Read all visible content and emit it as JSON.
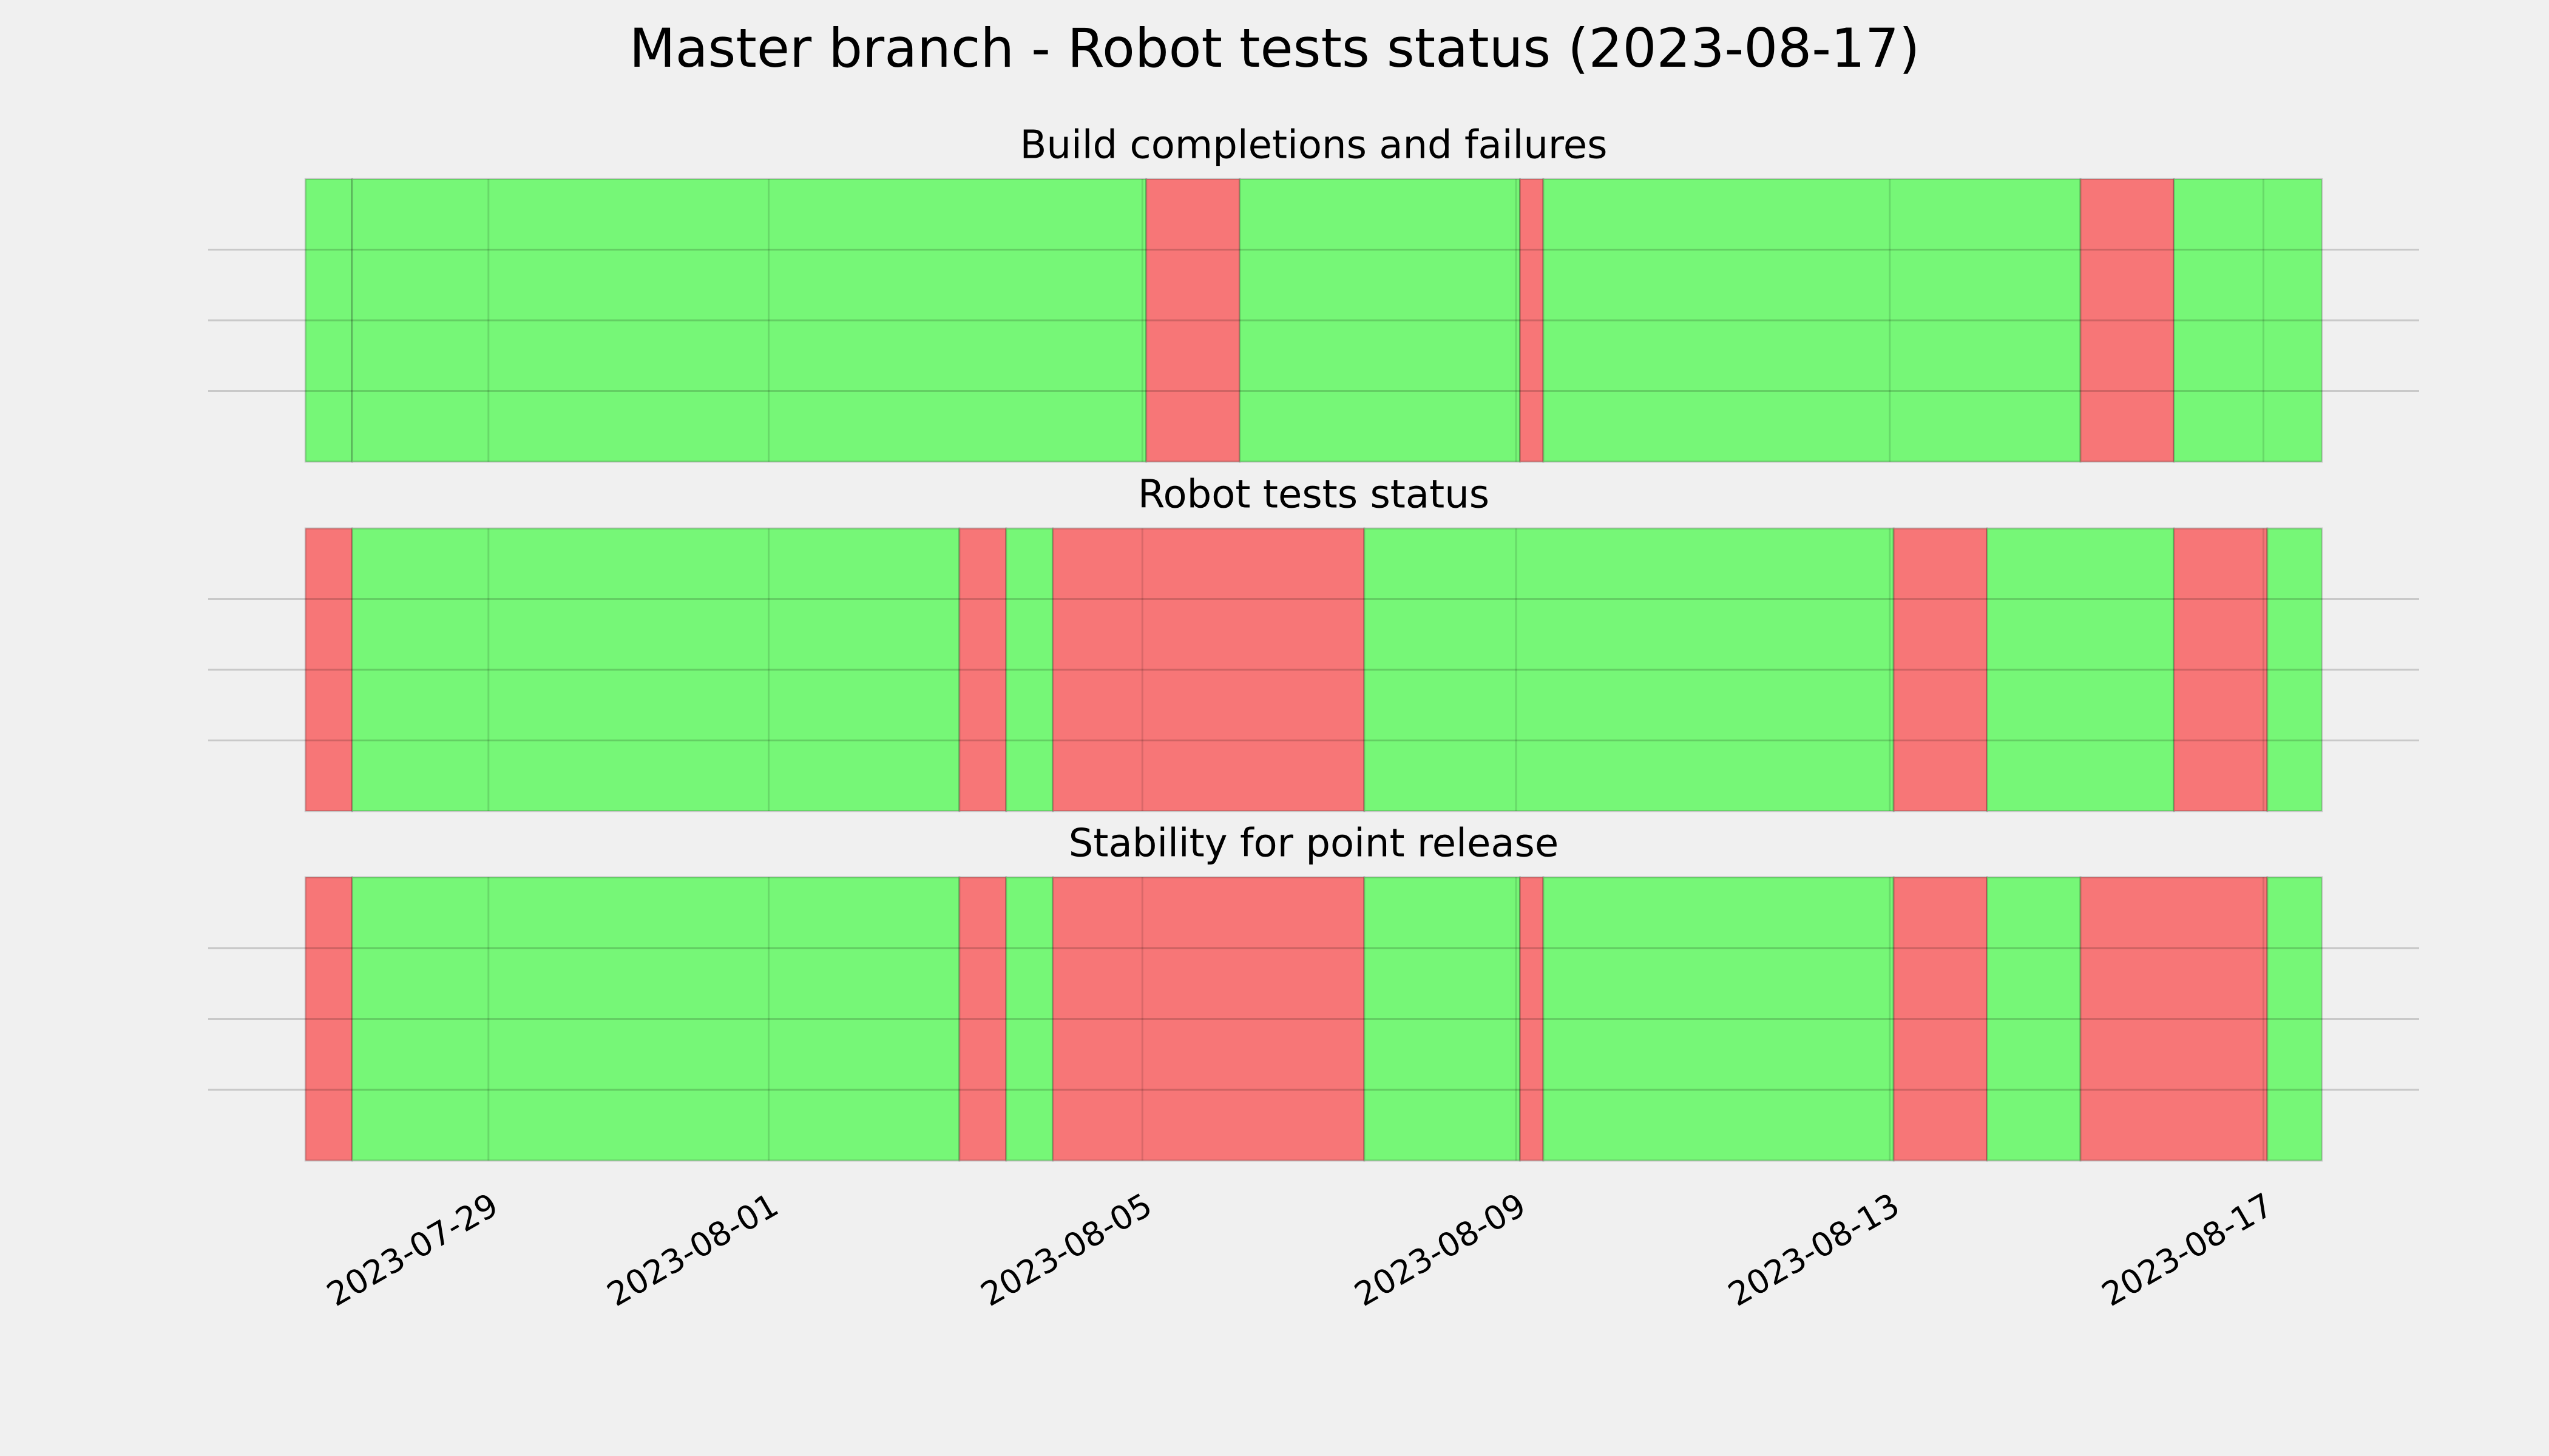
{
  "title": "Master branch - Robot tests status (2023-08-17)",
  "chart_data": [
    {
      "type": "timeline",
      "title": "Build completions and failures",
      "xlim": [
        "2023-07-26T00:00",
        "2023-08-18T16:00"
      ],
      "ylim": [
        0,
        1
      ],
      "yticks": [
        0.25,
        0.5,
        0.75
      ],
      "xticks": [
        "2023-07-29",
        "2023-08-01",
        "2023-08-05",
        "2023-08-09",
        "2023-08-13",
        "2023-08-17"
      ],
      "grid": true,
      "segments": [
        {
          "start": "2023-07-27T01:00",
          "end": "2023-07-27T13:00",
          "value": 1,
          "color": "#76f777"
        },
        {
          "start": "2023-07-27T13:00",
          "end": "2023-08-05T01:00",
          "value": 1,
          "color": "#76f777"
        },
        {
          "start": "2023-08-05T01:00",
          "end": "2023-08-06T01:00",
          "value": 1,
          "color": "#f77677"
        },
        {
          "start": "2023-08-06T01:00",
          "end": "2023-08-09T01:00",
          "value": 1,
          "color": "#76f777"
        },
        {
          "start": "2023-08-09T01:00",
          "end": "2023-08-09T07:00",
          "value": 1,
          "color": "#f77677"
        },
        {
          "start": "2023-08-09T07:00",
          "end": "2023-08-15T01:00",
          "value": 1,
          "color": "#76f777"
        },
        {
          "start": "2023-08-15T01:00",
          "end": "2023-08-16T01:00",
          "value": 1,
          "color": "#f77677"
        },
        {
          "start": "2023-08-16T01:00",
          "end": "2023-08-17T15:00",
          "value": 1,
          "color": "#76f777"
        }
      ]
    },
    {
      "type": "timeline",
      "title": "Robot tests status",
      "xlim": [
        "2023-07-26T00:00",
        "2023-08-18T16:00"
      ],
      "ylim": [
        0,
        1
      ],
      "yticks": [
        0.25,
        0.5,
        0.75
      ],
      "xticks": [
        "2023-07-29",
        "2023-08-01",
        "2023-08-05",
        "2023-08-09",
        "2023-08-13",
        "2023-08-17"
      ],
      "grid": true,
      "segments": [
        {
          "start": "2023-07-27T01:00",
          "end": "2023-07-27T13:00",
          "value": 1,
          "color": "#f77677"
        },
        {
          "start": "2023-07-27T13:00",
          "end": "2023-08-03T01:00",
          "value": 1,
          "color": "#76f777"
        },
        {
          "start": "2023-08-03T01:00",
          "end": "2023-08-03T13:00",
          "value": 1,
          "color": "#f77677"
        },
        {
          "start": "2023-08-03T13:00",
          "end": "2023-08-04T01:00",
          "value": 1,
          "color": "#76f777"
        },
        {
          "start": "2023-08-04T01:00",
          "end": "2023-08-07T09:00",
          "value": 1,
          "color": "#f77677"
        },
        {
          "start": "2023-08-07T09:00",
          "end": "2023-08-13T01:00",
          "value": 1,
          "color": "#76f777"
        },
        {
          "start": "2023-08-13T01:00",
          "end": "2023-08-14T01:00",
          "value": 1,
          "color": "#f77677"
        },
        {
          "start": "2023-08-14T01:00",
          "end": "2023-08-16T01:00",
          "value": 1,
          "color": "#76f777"
        },
        {
          "start": "2023-08-16T01:00",
          "end": "2023-08-17T01:00",
          "value": 1,
          "color": "#f77677"
        },
        {
          "start": "2023-08-17T01:00",
          "end": "2023-08-17T15:00",
          "value": 1,
          "color": "#76f777"
        }
      ]
    },
    {
      "type": "timeline",
      "title": "Stability for point release",
      "xlim": [
        "2023-07-26T00:00",
        "2023-08-18T16:00"
      ],
      "ylim": [
        0,
        1
      ],
      "yticks": [
        0.25,
        0.5,
        0.75
      ],
      "xticks": [
        "2023-07-29",
        "2023-08-01",
        "2023-08-05",
        "2023-08-09",
        "2023-08-13",
        "2023-08-17"
      ],
      "grid": true,
      "show_xtick_labels": true,
      "segments": [
        {
          "start": "2023-07-27T01:00",
          "end": "2023-07-27T13:00",
          "value": 1,
          "color": "#f77677"
        },
        {
          "start": "2023-07-27T13:00",
          "end": "2023-08-03T01:00",
          "value": 1,
          "color": "#76f777"
        },
        {
          "start": "2023-08-03T01:00",
          "end": "2023-08-03T13:00",
          "value": 1,
          "color": "#f77677"
        },
        {
          "start": "2023-08-03T13:00",
          "end": "2023-08-04T01:00",
          "value": 1,
          "color": "#76f777"
        },
        {
          "start": "2023-08-04T01:00",
          "end": "2023-08-07T09:00",
          "value": 1,
          "color": "#f77677"
        },
        {
          "start": "2023-08-07T09:00",
          "end": "2023-08-09T01:00",
          "value": 1,
          "color": "#76f777"
        },
        {
          "start": "2023-08-09T01:00",
          "end": "2023-08-09T07:00",
          "value": 1,
          "color": "#f77677"
        },
        {
          "start": "2023-08-09T07:00",
          "end": "2023-08-13T01:00",
          "value": 1,
          "color": "#76f777"
        },
        {
          "start": "2023-08-13T01:00",
          "end": "2023-08-14T01:00",
          "value": 1,
          "color": "#f77677"
        },
        {
          "start": "2023-08-14T01:00",
          "end": "2023-08-15T01:00",
          "value": 1,
          "color": "#76f777"
        },
        {
          "start": "2023-08-15T01:00",
          "end": "2023-08-17T01:00",
          "value": 1,
          "color": "#f77677"
        },
        {
          "start": "2023-08-17T01:00",
          "end": "2023-08-17T15:00",
          "value": 1,
          "color": "#76f777"
        }
      ]
    }
  ]
}
